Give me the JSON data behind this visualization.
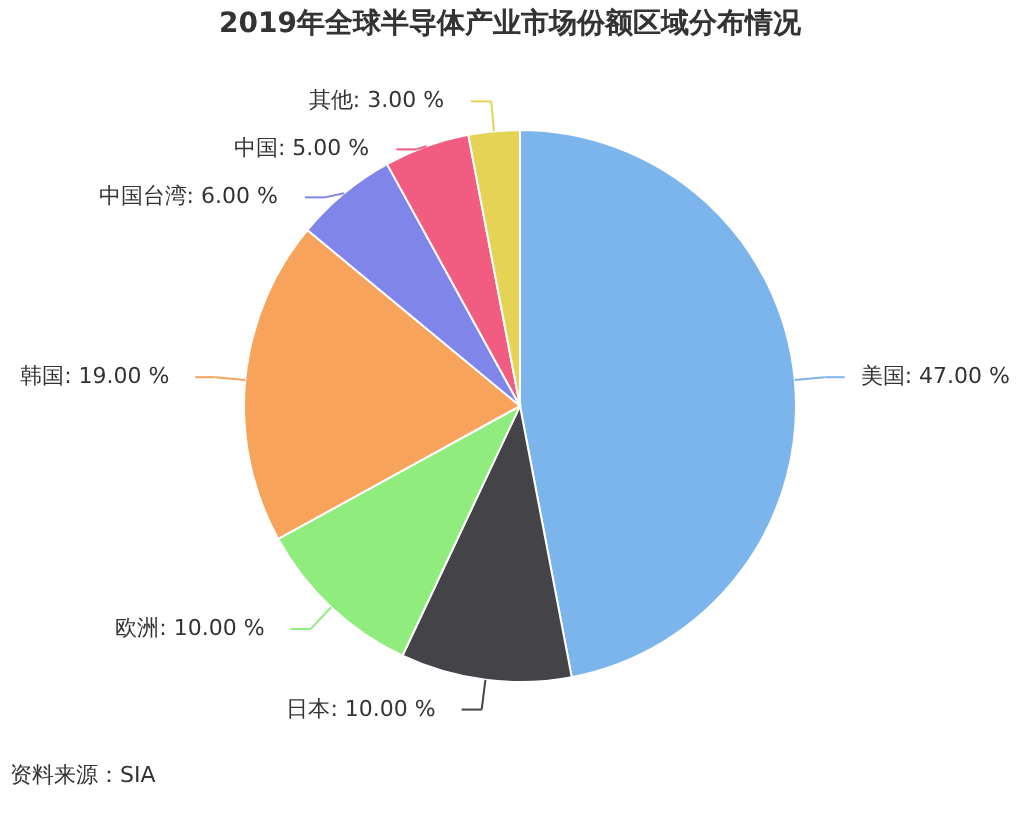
{
  "chart_data": {
    "type": "pie",
    "title": "2019年全球半导体产业市场份额区域分布情况",
    "categories": [
      "美国",
      "日本",
      "欧洲",
      "韩国",
      "中国台湾",
      "中国",
      "其他"
    ],
    "values": [
      47,
      10,
      10,
      19,
      6,
      5,
      3
    ],
    "colors": [
      "#7cb5ec",
      "#434348",
      "#90ed7d",
      "#f7a35c",
      "#8085e9",
      "#f15c80",
      "#e4d354"
    ],
    "value_labels": [
      ": 47.00 %",
      ": 10.00 %",
      ": 10.00 %",
      ": 19.00 %",
      ": 6.00 %",
      ": 5.00 %",
      ": 3.00 %"
    ],
    "annotations": [
      "资料来源：SIA"
    ]
  }
}
